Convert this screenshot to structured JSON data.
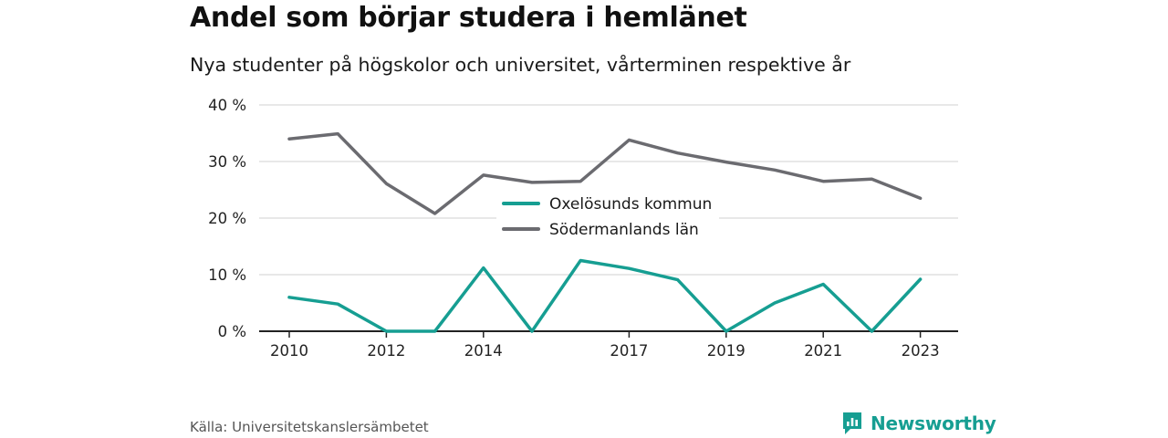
{
  "title": "Andel som börjar studera i hemlänet",
  "subtitle": "Nya studenter på högskolor och universitet, vårterminen respektive år",
  "source": "Källa: Universitetskanslersämbetet",
  "brand": {
    "name": "Newsworthy",
    "icon": "newsworthy-logo-icon"
  },
  "colors": {
    "series1": "#169e92",
    "series2": "#6b6b70",
    "grid": "#d9d9d9",
    "axis": "#222222"
  },
  "chart_data": {
    "type": "line",
    "x": [
      2010,
      2011,
      2012,
      2013,
      2014,
      2015,
      2016,
      2017,
      2018,
      2019,
      2020,
      2021,
      2022,
      2023
    ],
    "x_tick_labels": [
      "2010",
      "2012",
      "2014",
      "2017",
      "2019",
      "2021",
      "2023"
    ],
    "y_ticks": [
      0,
      10,
      20,
      30,
      40
    ],
    "y_tick_labels": [
      "0 %",
      "10 %",
      "20 %",
      "30 %",
      "40 %"
    ],
    "ylim": [
      0,
      40
    ],
    "grid": true,
    "legend_position": "center",
    "series": [
      {
        "name": "Oxelösunds kommun",
        "color": "#169e92",
        "values": [
          6.0,
          4.8,
          0,
          0,
          11.2,
          0,
          12.5,
          11.1,
          9.1,
          0,
          5.0,
          8.3,
          0,
          9.2
        ]
      },
      {
        "name": "Södermanlands län",
        "color": "#6b6b70",
        "values": [
          34.0,
          34.9,
          26.1,
          20.8,
          27.6,
          26.3,
          26.5,
          33.8,
          31.5,
          29.9,
          28.5,
          26.5,
          26.9,
          23.5
        ]
      }
    ]
  }
}
